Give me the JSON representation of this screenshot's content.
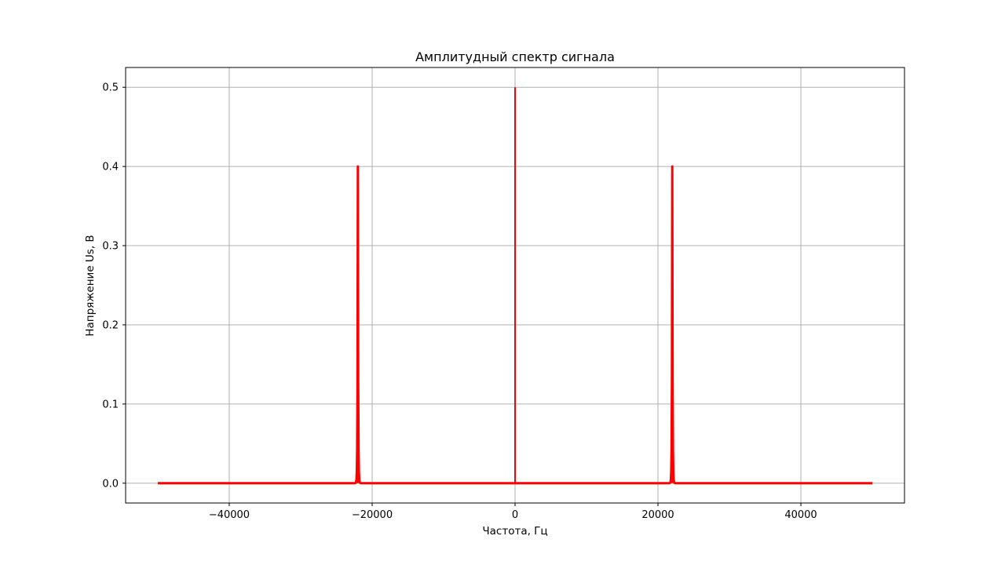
{
  "chart_data": {
    "type": "line",
    "title": "Амплитудный спектр сигнала",
    "xlabel": "Частота, Гц",
    "ylabel": "Напряжение Us, В",
    "xlim": [
      -54500,
      54500
    ],
    "ylim": [
      -0.025,
      0.525
    ],
    "xticks": [
      -40000,
      -20000,
      0,
      20000,
      40000
    ],
    "xtick_labels": [
      "−40000",
      "−20000",
      "0",
      "20000",
      "40000"
    ],
    "yticks": [
      0.0,
      0.1,
      0.2,
      0.3,
      0.4,
      0.5
    ],
    "ytick_labels": [
      "0.0",
      "0.1",
      "0.2",
      "0.3",
      "0.4",
      "0.5"
    ],
    "grid": true,
    "series": [
      {
        "color": "#ff0000",
        "x_range": [
          -50000,
          50000
        ],
        "baseline": 0.0,
        "peaks": [
          {
            "x": -22000,
            "y": 0.4
          },
          {
            "x": 0,
            "y": 0.5
          },
          {
            "x": 22000,
            "y": 0.4
          }
        ]
      }
    ]
  }
}
